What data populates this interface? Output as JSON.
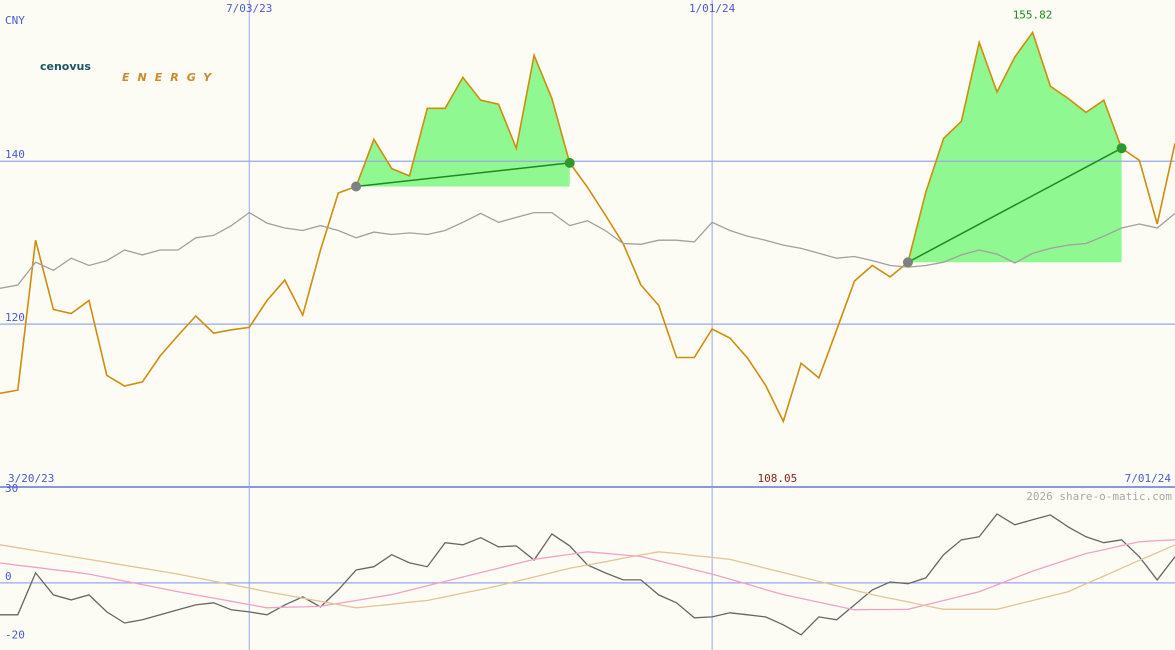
{
  "logo": {
    "name": "cenovus",
    "tagline": "ENERGY"
  },
  "watermark": "2026 share-o-matic.com",
  "chart_data": [
    {
      "type": "line",
      "y_label": "CNY",
      "xlim": [
        0,
        66
      ],
      "xticks": [
        {
          "value": 14,
          "label": "7/03/23"
        },
        {
          "value": 40,
          "label": "1/01/24"
        }
      ],
      "period_labels": [
        "3/20/23",
        "7/01/24"
      ],
      "ylim": [
        100,
        159.8
      ],
      "yticks": [
        120,
        140
      ],
      "grid": true,
      "high": 155.82,
      "high_index": 58,
      "low": 108.05,
      "low_index": 44,
      "series": [
        {
          "name": "Price",
          "color": "#d08c0c",
          "values": [
            111.5,
            111.9,
            130.3,
            121.8,
            121.3,
            122.9,
            113.7,
            112.4,
            112.9,
            116.1,
            118.6,
            121.0,
            118.9,
            119.3,
            119.6,
            122.9,
            125.4,
            121.1,
            129.1,
            136.1,
            136.9,
            142.7,
            139.1,
            138.2,
            146.5,
            146.5,
            150.3,
            147.5,
            147.0,
            141.6,
            153.0,
            147.7,
            139.8,
            136.8,
            133.4,
            129.9,
            124.8,
            122.3,
            115.9,
            115.9,
            119.4,
            118.3,
            115.8,
            112.5,
            108.05,
            115.2,
            113.4,
            119.3,
            125.3,
            127.2,
            125.8,
            127.6,
            136.2,
            142.8,
            144.9,
            154.6,
            148.5,
            152.8,
            155.82,
            149.2,
            147.7,
            146.0,
            147.5,
            141.6,
            140.1,
            132.3,
            142.2
          ]
        },
        {
          "name": "Average",
          "color": "#a0a0a0",
          "values": [
            124.4,
            124.8,
            127.6,
            126.6,
            128.1,
            127.2,
            127.8,
            129.1,
            128.5,
            129.1,
            129.1,
            130.6,
            130.9,
            132.1,
            133.7,
            132.4,
            131.8,
            131.5,
            132.1,
            131.5,
            130.6,
            131.3,
            131.0,
            131.2,
            131.0,
            131.5,
            132.5,
            133.6,
            132.5,
            133.1,
            133.7,
            133.7,
            132.1,
            132.7,
            131.5,
            129.9,
            129.8,
            130.3,
            130.3,
            130.1,
            132.5,
            131.5,
            130.8,
            130.3,
            129.7,
            129.3,
            128.7,
            128.1,
            128.3,
            127.8,
            127.2,
            127.0,
            127.2,
            127.6,
            128.5,
            129.1,
            128.6,
            127.5,
            128.7,
            129.3,
            129.7,
            129.9,
            130.8,
            131.8,
            132.3,
            131.8,
            133.6
          ]
        }
      ],
      "trades": [
        {
          "start": 20,
          "end": 32
        },
        {
          "start": 51,
          "end": 63
        }
      ],
      "trade_color": "#90f890"
    },
    {
      "type": "line",
      "xlim": [
        0,
        66
      ],
      "xticks": [
        {
          "value": 14,
          "label": "7/03/23"
        },
        {
          "value": 40,
          "label": "1/01/24"
        }
      ],
      "ylim": [
        -22.9,
        32.7
      ],
      "yticks": [
        -20,
        0,
        30
      ],
      "baseline": 0,
      "series": [
        {
          "name": "Oscillator",
          "color": "#666666",
          "values": [
            -10.9,
            -10.9,
            3.4,
            -4.1,
            -5.8,
            -4.1,
            -9.9,
            -13.7,
            -12.6,
            -10.9,
            -9.2,
            -7.5,
            -6.8,
            -9.2,
            -9.9,
            -10.9,
            -7.5,
            -4.8,
            -8.2,
            -2.4,
            4.4,
            5.5,
            9.6,
            6.8,
            5.5,
            13.7,
            13.0,
            15.4,
            12.3,
            12.6,
            7.8,
            16.7,
            12.6,
            6.1,
            3.4,
            1.0,
            1.0,
            -4.1,
            -6.8,
            -11.9,
            -11.6,
            -10.2,
            -10.9,
            -11.6,
            -14.3,
            -17.7,
            -11.6,
            -12.6,
            -7.5,
            -2.4,
            0.3,
            -0.3,
            1.7,
            9.6,
            14.7,
            15.7,
            23.5,
            19.8,
            21.5,
            23.2,
            19.1,
            15.7,
            13.7,
            14.7,
            8.9,
            1.0,
            8.9
          ]
        },
        {
          "name": "Fast",
          "color": "#f4a0c8",
          "values": [
            6.8,
            6.0,
            5.3,
            4.5,
            3.8,
            3.0,
            1.8,
            0.6,
            -0.6,
            -1.8,
            -3.0,
            -4.1,
            -5.2,
            -6.3,
            -7.4,
            -8.5,
            -8.3,
            -8.2,
            -8.0,
            -7.0,
            -6.0,
            -5.0,
            -4.0,
            -2.5,
            -1.0,
            0.5,
            2.0,
            3.5,
            5.0,
            6.5,
            8.0,
            8.9,
            9.7,
            10.6,
            10.1,
            9.5,
            9.0,
            7.5,
            6.0,
            4.5,
            3.0,
            1.3,
            -0.5,
            -2.3,
            -4.0,
            -5.3,
            -6.6,
            -7.9,
            -9.2,
            -9.1,
            -9.1,
            -9.0,
            -7.5,
            -6.0,
            -4.5,
            -3.0,
            -0.7,
            1.7,
            4.0,
            6.0,
            8.0,
            10.0,
            11.3,
            12.7,
            14.0,
            14.4,
            14.7
          ]
        },
        {
          "name": "Slow",
          "color": "#e2c496",
          "values": [
            13,
            12,
            11,
            10,
            9,
            8,
            7,
            6,
            5,
            4,
            3,
            1.8,
            0.6,
            -0.6,
            -1.8,
            -3.0,
            -4.1,
            -5.2,
            -6.3,
            -7.4,
            -8.5,
            -7.9,
            -7.3,
            -6.6,
            -6.0,
            -4.8,
            -3.5,
            -2.3,
            -1.0,
            0.5,
            2.0,
            3.5,
            5.0,
            6.1,
            7.2,
            8.4,
            9.5,
            10.6,
            10.0,
            9.3,
            8.7,
            8.0,
            6.5,
            5.0,
            3.5,
            2.0,
            0.5,
            -1.0,
            -2.5,
            -4.0,
            -5.3,
            -6.5,
            -7.8,
            -9.0,
            -9.0,
            -9.0,
            -9.0,
            -7.5,
            -6.0,
            -4.5,
            -3.0,
            -0.3,
            2.3,
            5.0,
            7.7,
            10.3,
            13.0
          ]
        }
      ]
    }
  ]
}
